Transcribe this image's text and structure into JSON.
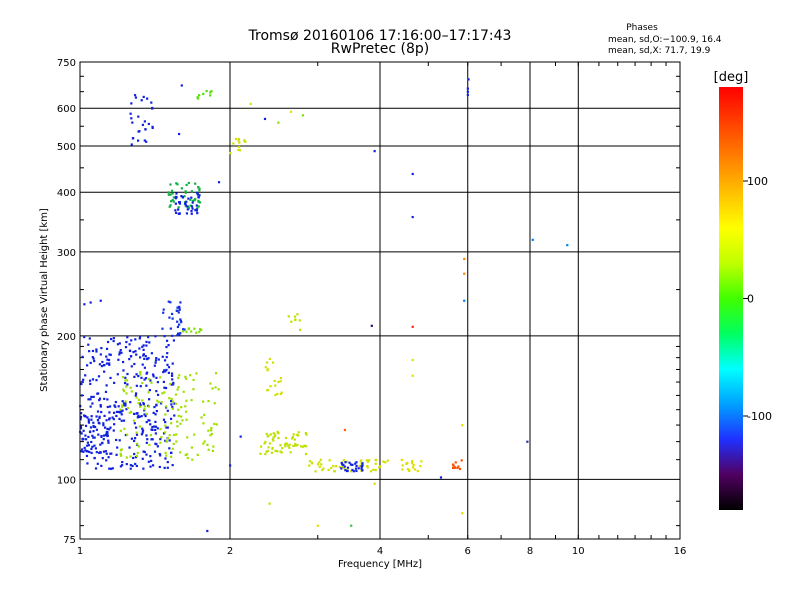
{
  "chart_data": {
    "type": "scatter",
    "title": "Tromsø 20160106 17:16:00–17:17:43",
    "subtitle": "RwPretec (8p)",
    "xlabel": "Frequency [MHz]",
    "ylabel": "Stationary phase Virtual Height [km]",
    "x_scale": "log",
    "y_scale": "log",
    "xlim": [
      1,
      16
    ],
    "ylim": [
      75,
      750
    ],
    "x_ticks": [
      1,
      2,
      4,
      6,
      8,
      10,
      16
    ],
    "y_ticks": [
      75,
      100,
      200,
      300,
      400,
      500,
      600,
      750
    ],
    "grid": true,
    "phase_box": {
      "title": "Phases",
      "line1": "mean, sd,O:−100.9, 16.4",
      "line2": "mean, sd,X:  71.7, 19.9"
    },
    "colorbar": {
      "label": "[deg]",
      "range": [
        -180,
        180
      ],
      "ticks": [
        100,
        0,
        -100
      ],
      "colors": [
        "#000000",
        "#500060",
        "#2030ff",
        "#00a0ff",
        "#00ffff",
        "#00ff60",
        "#40ff00",
        "#c0ff00",
        "#ffff00",
        "#ffc000",
        "#ff8000",
        "#ff4000",
        "#ff0000"
      ]
    },
    "clusters": [
      {
        "x": [
          1.0,
          1.55
        ],
        "y": [
          105,
          200
        ],
        "n": 360,
        "color": "#1020e0"
      },
      {
        "x": [
          1.2,
          1.9
        ],
        "y": [
          110,
          170
        ],
        "n": 140,
        "color": "#a0e000"
      },
      {
        "x": [
          1.0,
          1.15
        ],
        "y": [
          112,
          140
        ],
        "n": 60,
        "color": "#1020e0"
      },
      {
        "x": [
          1.5,
          1.75
        ],
        "y": [
          370,
          420
        ],
        "n": 45,
        "color": "#10b040"
      },
      {
        "x": [
          1.55,
          1.75
        ],
        "y": [
          360,
          400
        ],
        "n": 40,
        "color": "#1020e0"
      },
      {
        "x": [
          1.25,
          1.4
        ],
        "y": [
          500,
          640
        ],
        "n": 28,
        "color": "#1020e0"
      },
      {
        "x": [
          1.45,
          1.62
        ],
        "y": [
          200,
          240
        ],
        "n": 30,
        "color": "#1030e0"
      },
      {
        "x": [
          1.6,
          1.75
        ],
        "y": [
          203,
          208
        ],
        "n": 10,
        "color": "#80e000"
      },
      {
        "x": [
          2.3,
          2.85
        ],
        "y": [
          113,
          127
        ],
        "n": 60,
        "color": "#c0e000"
      },
      {
        "x": [
          2.35,
          2.55
        ],
        "y": [
          150,
          180
        ],
        "n": 18,
        "color": "#d0e000"
      },
      {
        "x": [
          2.85,
          4.2
        ],
        "y": [
          104,
          110
        ],
        "n": 50,
        "color": "#d0e000"
      },
      {
        "x": [
          3.3,
          3.7
        ],
        "y": [
          104,
          109
        ],
        "n": 28,
        "color": "#1020e0"
      },
      {
        "x": [
          4.4,
          4.9
        ],
        "y": [
          104,
          110
        ],
        "n": 18,
        "color": "#e0e000"
      },
      {
        "x": [
          5.6,
          5.85
        ],
        "y": [
          104,
          110
        ],
        "n": 10,
        "color": "#ff5000"
      },
      {
        "x": [
          2.0,
          2.15
        ],
        "y": [
          480,
          520
        ],
        "n": 12,
        "color": "#d0e000"
      },
      {
        "x": [
          2.6,
          2.8
        ],
        "y": [
          205,
          225
        ],
        "n": 8,
        "color": "#c0e000"
      },
      {
        "x": [
          1.7,
          1.85
        ],
        "y": [
          620,
          660
        ],
        "n": 8,
        "color": "#50e000"
      }
    ],
    "points": [
      {
        "x": 1.02,
        "y": 233,
        "color": "#1020e0"
      },
      {
        "x": 1.05,
        "y": 235,
        "color": "#1020e0"
      },
      {
        "x": 1.1,
        "y": 237,
        "color": "#1020e0"
      },
      {
        "x": 1.6,
        "y": 670,
        "color": "#1020e0"
      },
      {
        "x": 1.58,
        "y": 530,
        "color": "#1020e0"
      },
      {
        "x": 1.9,
        "y": 420,
        "color": "#1020e0"
      },
      {
        "x": 2.2,
        "y": 613,
        "color": "#e0e000"
      },
      {
        "x": 3.9,
        "y": 488,
        "color": "#1020e0"
      },
      {
        "x": 4.65,
        "y": 437,
        "color": "#1020e0"
      },
      {
        "x": 4.65,
        "y": 355,
        "color": "#1020e0"
      },
      {
        "x": 3.85,
        "y": 210,
        "color": "#101080"
      },
      {
        "x": 4.65,
        "y": 209,
        "color": "#ff2000"
      },
      {
        "x": 4.65,
        "y": 178,
        "color": "#e0e000"
      },
      {
        "x": 4.65,
        "y": 165,
        "color": "#e0e000"
      },
      {
        "x": 6.0,
        "y": 640,
        "color": "#1020e0"
      },
      {
        "x": 6.0,
        "y": 650,
        "color": "#1020e0"
      },
      {
        "x": 6.0,
        "y": 660,
        "color": "#1020e0"
      },
      {
        "x": 6.02,
        "y": 690,
        "color": "#1020e0"
      },
      {
        "x": 5.9,
        "y": 290,
        "color": "#ff8000"
      },
      {
        "x": 5.9,
        "y": 270,
        "color": "#ff8000"
      },
      {
        "x": 5.9,
        "y": 237,
        "color": "#0080ff"
      },
      {
        "x": 8.1,
        "y": 318,
        "color": "#0080ff"
      },
      {
        "x": 9.5,
        "y": 310,
        "color": "#0080ff"
      },
      {
        "x": 7.9,
        "y": 120,
        "color": "#2030a0"
      },
      {
        "x": 5.85,
        "y": 130,
        "color": "#e0e000"
      },
      {
        "x": 5.85,
        "y": 85,
        "color": "#e0e000"
      },
      {
        "x": 5.3,
        "y": 101,
        "color": "#1020e0"
      },
      {
        "x": 2.4,
        "y": 89,
        "color": "#c0e000"
      },
      {
        "x": 3.0,
        "y": 80,
        "color": "#e0e000"
      },
      {
        "x": 3.5,
        "y": 80,
        "color": "#40c040"
      },
      {
        "x": 1.8,
        "y": 78,
        "color": "#1020e0"
      },
      {
        "x": 3.9,
        "y": 98,
        "color": "#e0e000"
      },
      {
        "x": 2.1,
        "y": 123,
        "color": "#1020e0"
      },
      {
        "x": 2.0,
        "y": 107,
        "color": "#1020e0"
      },
      {
        "x": 3.4,
        "y": 127,
        "color": "#ff6000"
      },
      {
        "x": 2.8,
        "y": 580,
        "color": "#80e000"
      },
      {
        "x": 2.65,
        "y": 590,
        "color": "#e0e000"
      },
      {
        "x": 2.5,
        "y": 560,
        "color": "#80e000"
      },
      {
        "x": 2.35,
        "y": 570,
        "color": "#1020e0"
      }
    ]
  }
}
